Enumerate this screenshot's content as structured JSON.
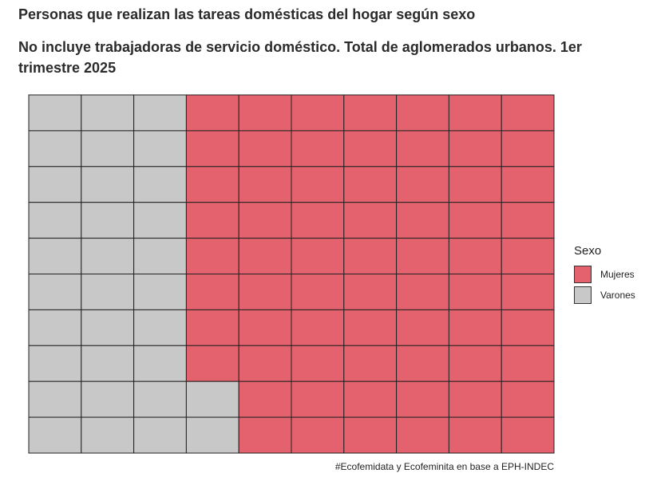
{
  "header": {
    "title": "Personas que realizan las tareas domésticas del hogar según sexo",
    "subtitle": "No incluye trabajadoras de servicio doméstico. Total de aglomerados urbanos. 1er trimestre 2025"
  },
  "chart_data": {
    "type": "waffle",
    "title": "Personas que realizan las tareas domésticas del hogar según sexo",
    "subtitle": "No incluye trabajadoras de servicio doméstico. Total de aglomerados urbanos. 1er trimestre 2025",
    "grid_rows": 10,
    "grid_cols": 10,
    "fill_order": "column-major, bottom-to-top within column, Varones first",
    "series": [
      {
        "name": "Mujeres",
        "values": [
          68
        ],
        "color": "#e4626e"
      },
      {
        "name": "Varones",
        "values": [
          32
        ],
        "color": "#c8c8c8"
      }
    ],
    "legend": {
      "title": "Sexo",
      "placement": "right"
    },
    "grid": false,
    "caption": "#Ecofemidata y Ecofeminita en base a EPH-INDEC"
  }
}
